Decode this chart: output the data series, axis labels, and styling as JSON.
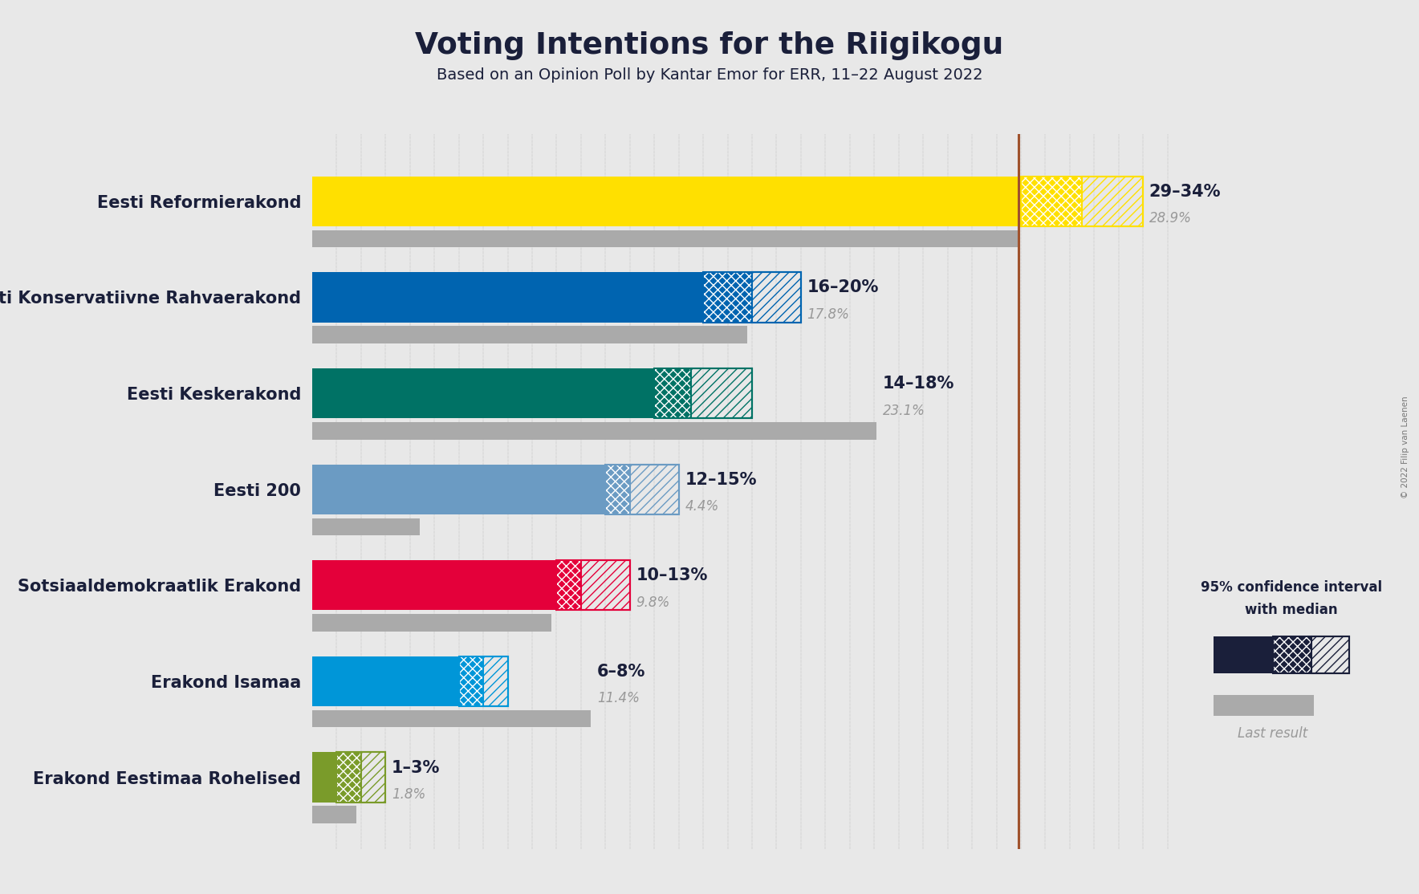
{
  "title": "Voting Intentions for the Riigikogu",
  "subtitle": "Based on an Opinion Poll by Kantar Emor for ERR, 11–22 August 2022",
  "copyright": "© 2022 Filip van Laenen",
  "background_color": "#e8e8e8",
  "parties": [
    {
      "name": "Eesti Reformierakond",
      "color": "#FFE000",
      "ci_low": 29,
      "ci_high": 34,
      "median": 31.5,
      "last_result": 28.9,
      "label": "29–34%",
      "last_label": "28.9%"
    },
    {
      "name": "Eesti Konservatiivne Rahvaerakond",
      "color": "#0064B0",
      "ci_low": 16,
      "ci_high": 20,
      "median": 18,
      "last_result": 17.8,
      "label": "16–20%",
      "last_label": "17.8%"
    },
    {
      "name": "Eesti Keskerakond",
      "color": "#007265",
      "ci_low": 14,
      "ci_high": 18,
      "median": 15.5,
      "last_result": 23.1,
      "label": "14–18%",
      "last_label": "23.1%"
    },
    {
      "name": "Eesti 200",
      "color": "#6B9BC3",
      "ci_low": 12,
      "ci_high": 15,
      "median": 13,
      "last_result": 4.4,
      "label": "12–15%",
      "last_label": "4.4%"
    },
    {
      "name": "Sotsiaaldemokraatlik Erakond",
      "color": "#E4003A",
      "ci_low": 10,
      "ci_high": 13,
      "median": 11,
      "last_result": 9.8,
      "label": "10–13%",
      "last_label": "9.8%"
    },
    {
      "name": "Erakond Isamaa",
      "color": "#0096D8",
      "ci_low": 6,
      "ci_high": 8,
      "median": 7,
      "last_result": 11.4,
      "label": "6–8%",
      "last_label": "11.4%"
    },
    {
      "name": "Erakond Eestimaa Rohelised",
      "color": "#7A9B2A",
      "ci_low": 1,
      "ci_high": 3,
      "median": 2,
      "last_result": 1.8,
      "label": "1–3%",
      "last_label": "1.8%"
    }
  ],
  "median_line_value": 28.9,
  "median_line_color": "#A0522D",
  "xlim_max": 36,
  "grid_color": "#444444",
  "last_result_color": "#AAAAAA",
  "legend_text_line1": "95% confidence interval",
  "legend_text_line2": "with median",
  "legend_last_result": "Last result",
  "dark_bar_color": "#1A1F3A"
}
